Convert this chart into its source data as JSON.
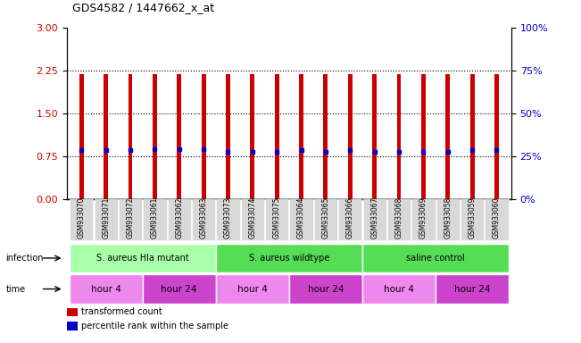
{
  "title": "GDS4582 / 1447662_x_at",
  "samples": [
    "GSM933070",
    "GSM933071",
    "GSM933072",
    "GSM933061",
    "GSM933062",
    "GSM933063",
    "GSM933073",
    "GSM933074",
    "GSM933075",
    "GSM933064",
    "GSM933065",
    "GSM933066",
    "GSM933067",
    "GSM933068",
    "GSM933069",
    "GSM933058",
    "GSM933059",
    "GSM933060"
  ],
  "bar_heights": [
    2.19,
    2.19,
    2.19,
    2.19,
    2.19,
    2.19,
    2.19,
    2.19,
    2.19,
    2.19,
    2.19,
    2.19,
    2.19,
    2.19,
    2.19,
    2.19,
    2.19,
    2.19
  ],
  "blue_marker_pos": [
    0.85,
    0.85,
    0.85,
    0.87,
    0.87,
    0.87,
    0.83,
    0.83,
    0.83,
    0.85,
    0.83,
    0.85,
    0.83,
    0.83,
    0.83,
    0.83,
    0.85,
    0.85
  ],
  "bar_color": "#cc0000",
  "blue_color": "#0000cc",
  "ylim": [
    0,
    3
  ],
  "yticks_left": [
    0,
    0.75,
    1.5,
    2.25,
    3
  ],
  "yticks_right": [
    0,
    25,
    50,
    75,
    100
  ],
  "ytick_labels_right": [
    "0%",
    "25%",
    "50%",
    "75%",
    "100%"
  ],
  "hlines": [
    0.75,
    1.5,
    2.25
  ],
  "left_yaxis_color": "#cc0000",
  "right_yaxis_color": "#0000cc",
  "infection_groups": [
    {
      "label": "S. aureus Hla mutant",
      "start": 0,
      "end": 6,
      "color": "#aaffaa"
    },
    {
      "label": "S. aureus wildtype",
      "start": 6,
      "end": 12,
      "color": "#55dd55"
    },
    {
      "label": "saline control",
      "start": 12,
      "end": 18,
      "color": "#55dd55"
    }
  ],
  "time_groups": [
    {
      "label": "hour 4",
      "start": 0,
      "end": 3,
      "color": "#ee88ee"
    },
    {
      "label": "hour 24",
      "start": 3,
      "end": 6,
      "color": "#cc44cc"
    },
    {
      "label": "hour 4",
      "start": 6,
      "end": 9,
      "color": "#ee88ee"
    },
    {
      "label": "hour 24",
      "start": 9,
      "end": 12,
      "color": "#cc44cc"
    },
    {
      "label": "hour 4",
      "start": 12,
      "end": 15,
      "color": "#ee88ee"
    },
    {
      "label": "hour 24",
      "start": 15,
      "end": 18,
      "color": "#cc44cc"
    }
  ],
  "legend_items": [
    {
      "label": "transformed count",
      "color": "#cc0000"
    },
    {
      "label": "percentile rank within the sample",
      "color": "#0000cc"
    }
  ],
  "bar_width": 0.18,
  "fig_width": 6.51,
  "fig_height": 3.84,
  "dpi": 100
}
